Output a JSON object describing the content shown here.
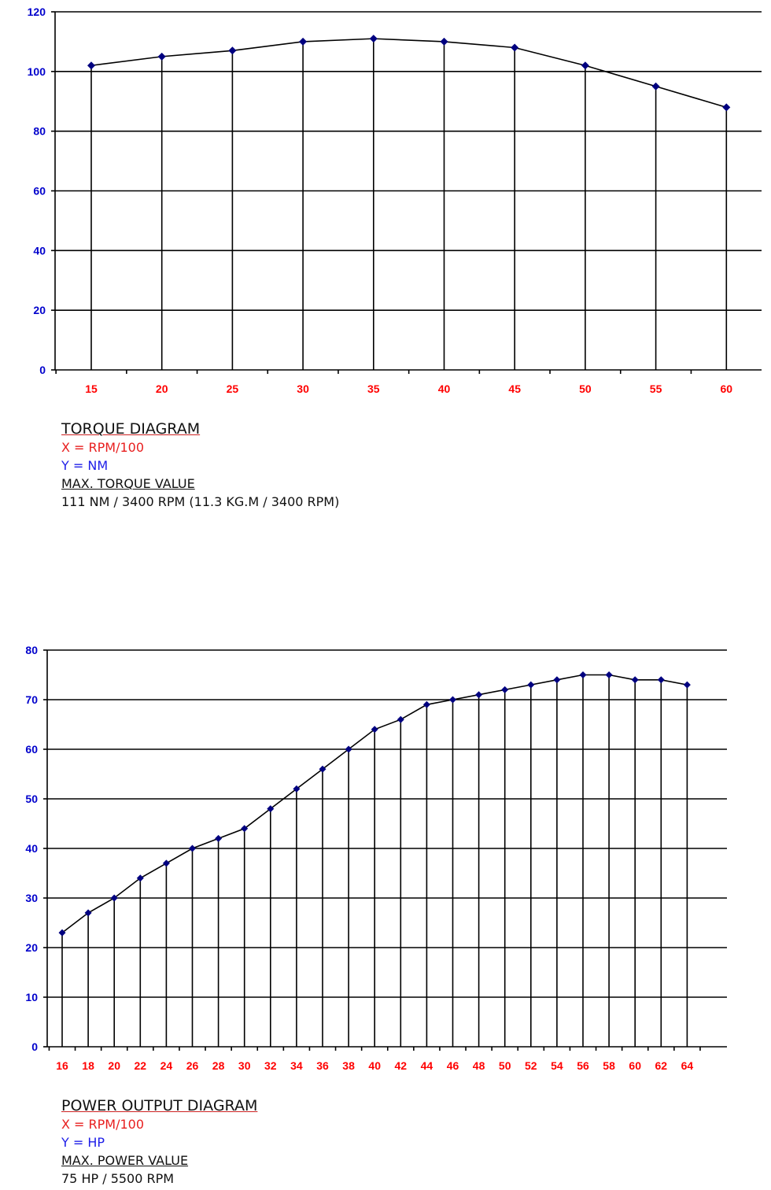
{
  "colors": {
    "axis": "#000000",
    "marker": "#000080",
    "xtick": "#ff0000",
    "ytick": "#0000cc"
  },
  "chart_data": [
    {
      "type": "line",
      "categories": [
        "15",
        "20",
        "25",
        "30",
        "35",
        "40",
        "45",
        "50",
        "55",
        "60"
      ],
      "x": [
        15,
        20,
        25,
        30,
        35,
        40,
        45,
        50,
        55,
        60
      ],
      "values": [
        102,
        105,
        107,
        110,
        111,
        110,
        108,
        102,
        95,
        88
      ],
      "ylim": [
        0,
        120
      ],
      "yticks": [
        "0",
        "20",
        "40",
        "60",
        "80",
        "100",
        "120"
      ],
      "grid": true,
      "legend": "none"
    },
    {
      "type": "line",
      "categories": [
        "16",
        "18",
        "20",
        "22",
        "24",
        "26",
        "28",
        "30",
        "32",
        "34",
        "36",
        "38",
        "40",
        "42",
        "44",
        "46",
        "48",
        "50",
        "52",
        "54",
        "56",
        "58",
        "60",
        "62",
        "64"
      ],
      "x": [
        16,
        18,
        20,
        22,
        24,
        26,
        28,
        30,
        32,
        34,
        36,
        38,
        40,
        42,
        44,
        46,
        48,
        50,
        52,
        54,
        56,
        58,
        60,
        62,
        64
      ],
      "values": [
        23,
        27,
        30,
        34,
        37,
        40,
        42,
        44,
        48,
        52,
        56,
        60,
        64,
        66,
        69,
        70,
        71,
        72,
        73,
        74,
        75,
        75,
        74,
        74,
        73
      ],
      "ylim": [
        0,
        80
      ],
      "yticks": [
        "0",
        "10",
        "20",
        "30",
        "40",
        "50",
        "60",
        "70",
        "80"
      ],
      "grid": true,
      "legend": "none"
    }
  ],
  "captions": {
    "torque": {
      "title": "TORQUE DIAGRAM",
      "x_label": "X = RPM/100",
      "y_label": "Y = NM",
      "max_heading": "MAX. TORQUE VALUE",
      "max_value": "111 NM / 3400 RPM (11.3 KG.M / 3400 RPM)"
    },
    "power": {
      "title": "POWER OUTPUT DIAGRAM",
      "x_label": "X = RPM/100",
      "y_label": "Y = HP",
      "max_heading": "MAX. POWER VALUE",
      "max_value": "75 HP / 5500 RPM"
    }
  }
}
